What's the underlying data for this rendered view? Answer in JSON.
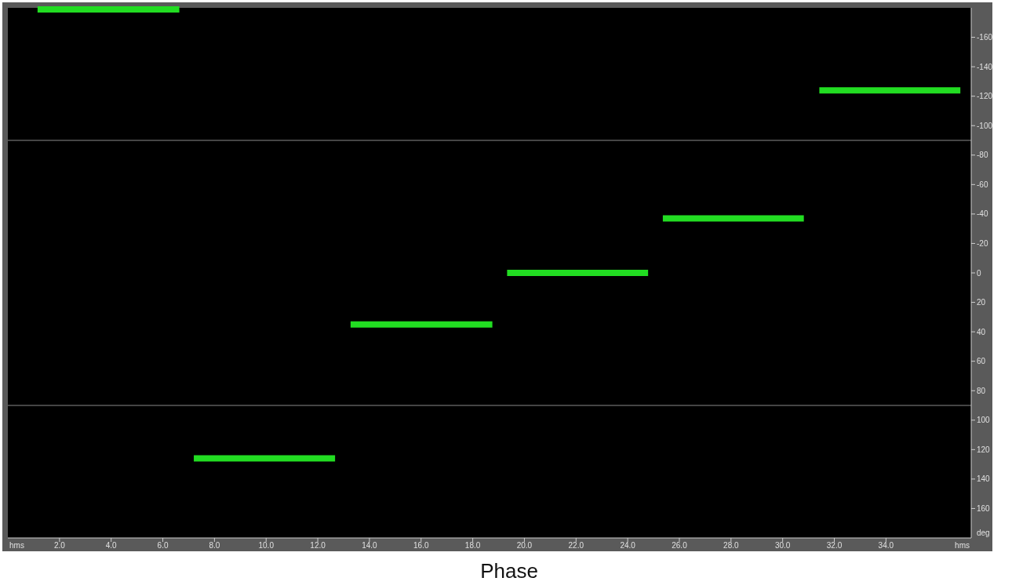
{
  "chart_data": {
    "type": "line",
    "title": "Phase",
    "xlabel": "hms",
    "ylabel": "deg",
    "xlim": [
      0,
      37.3
    ],
    "ylim": [
      180,
      -180
    ],
    "xticks": [
      {
        "value": 2,
        "label": "2.0"
      },
      {
        "value": 4,
        "label": "4.0"
      },
      {
        "value": 6,
        "label": "6.0"
      },
      {
        "value": 8,
        "label": "8.0"
      },
      {
        "value": 10,
        "label": "10.0"
      },
      {
        "value": 12,
        "label": "12.0"
      },
      {
        "value": 14,
        "label": "14.0"
      },
      {
        "value": 16,
        "label": "16.0"
      },
      {
        "value": 18,
        "label": "18.0"
      },
      {
        "value": 20,
        "label": "20.0"
      },
      {
        "value": 22,
        "label": "22.0"
      },
      {
        "value": 24,
        "label": "24.0"
      },
      {
        "value": 26,
        "label": "26.0"
      },
      {
        "value": 28,
        "label": "28.0"
      },
      {
        "value": 30,
        "label": "30.0"
      },
      {
        "value": 32,
        "label": "32.0"
      },
      {
        "value": 34,
        "label": "34.0"
      }
    ],
    "yticks": [
      -160,
      -140,
      -120,
      -100,
      -80,
      -60,
      -40,
      -20,
      0,
      20,
      40,
      60,
      80,
      100,
      120,
      140,
      160
    ],
    "ref_lines": [
      {
        "axis": "y",
        "value": -90,
        "color": "#8a8a8a"
      },
      {
        "axis": "y",
        "value": 90,
        "color": "#8a8a8a"
      }
    ],
    "series": [
      {
        "color": "#22dd22",
        "x": [
          1.15,
          6.64
        ],
        "values": [
          -179,
          -179
        ]
      },
      {
        "color": "#22dd22",
        "x": [
          7.2,
          12.67
        ],
        "values": [
          126,
          126
        ]
      },
      {
        "color": "#22dd22",
        "x": [
          13.27,
          18.76
        ],
        "values": [
          35,
          35
        ]
      },
      {
        "color": "#22dd22",
        "x": [
          19.33,
          24.79
        ],
        "values": [
          0,
          0
        ]
      },
      {
        "color": "#22dd22",
        "x": [
          25.36,
          30.82
        ],
        "values": [
          -37,
          -37
        ]
      },
      {
        "color": "#22dd22",
        "x": [
          31.42,
          36.88
        ],
        "values": [
          -124,
          -124
        ]
      }
    ]
  }
}
